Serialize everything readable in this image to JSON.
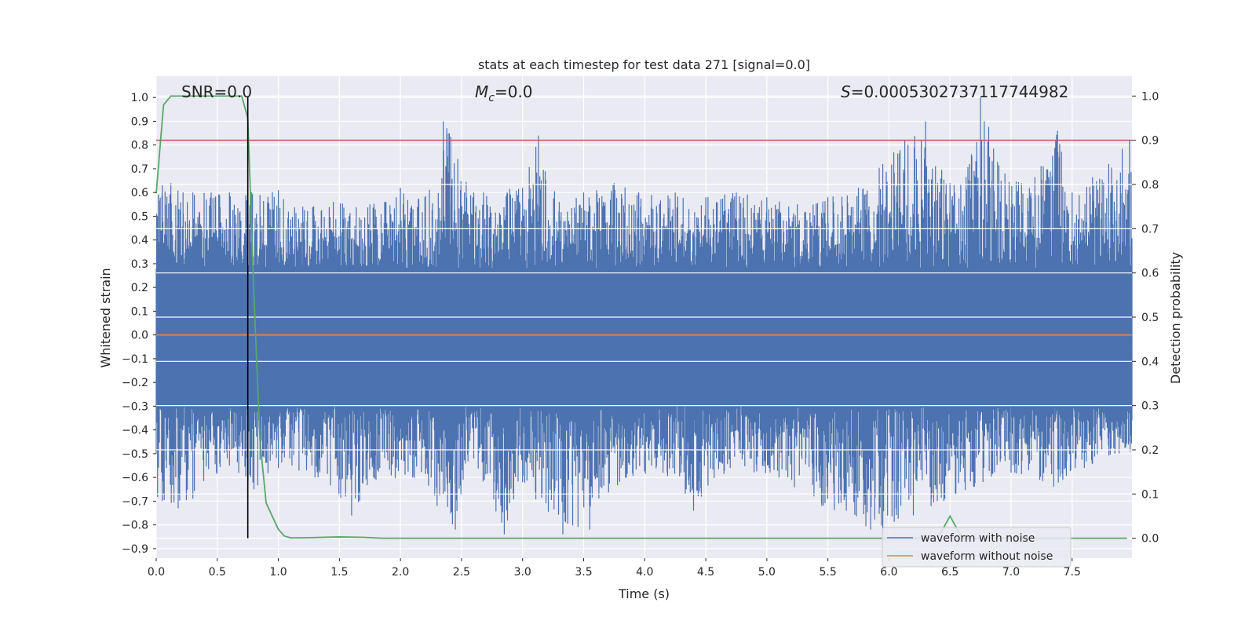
{
  "chart_data": {
    "type": "line",
    "title": "stats at each timestep for test data 271 [signal=0.0]",
    "xlabel": "Time (s)",
    "ylabel_left": "Whitened strain",
    "ylabel_right": "Detection probability",
    "xlim": [
      0.0,
      7.99
    ],
    "ylim_left": [
      -0.94,
      1.09
    ],
    "ylim_right": [
      -0.045,
      1.045
    ],
    "x_ticks": [
      "0.0",
      "0.5",
      "1.0",
      "1.5",
      "2.0",
      "2.5",
      "3.0",
      "3.5",
      "4.0",
      "4.5",
      "5.0",
      "5.5",
      "6.0",
      "6.5",
      "7.0",
      "7.5"
    ],
    "y_left_ticks": [
      "1.0",
      "0.9",
      "0.8",
      "0.7",
      "0.6",
      "0.5",
      "0.4",
      "0.3",
      "0.2",
      "0.1",
      "0.0",
      "−0.1",
      "−0.2",
      "−0.3",
      "−0.4",
      "−0.5",
      "−0.6",
      "−0.7",
      "−0.8",
      "−0.9"
    ],
    "y_right_ticks": [
      "1.0",
      "0.9",
      "0.8",
      "0.7",
      "0.6",
      "0.5",
      "0.4",
      "0.3",
      "0.2",
      "0.1",
      "0.0"
    ],
    "grid": true,
    "legend_position": "lower-right",
    "annotations": {
      "snr": "SNR=0.0",
      "mc_symbol": "M",
      "mc_sub": "c",
      "mc_value": "=0.0",
      "s_symbol": "S",
      "s_value": "=0.0005302737117744982"
    },
    "series": [
      {
        "name": "waveform with noise",
        "axis": "left",
        "color": "#4c72b0",
        "style": "dense noise",
        "upper_envelope_peaks": [
          [
            0.05,
            0.63
          ],
          [
            0.12,
            0.64
          ],
          [
            0.22,
            0.6
          ],
          [
            0.3,
            0.6
          ],
          [
            0.45,
            0.6
          ],
          [
            0.6,
            0.6
          ],
          [
            0.78,
            0.6
          ],
          [
            0.85,
            0.59
          ],
          [
            1.0,
            0.61
          ],
          [
            1.2,
            0.54
          ],
          [
            1.45,
            0.56
          ],
          [
            1.75,
            0.55
          ],
          [
            2.0,
            0.62
          ],
          [
            2.2,
            0.58
          ],
          [
            2.35,
            0.9
          ],
          [
            2.4,
            0.85
          ],
          [
            2.6,
            0.6
          ],
          [
            3.0,
            0.62
          ],
          [
            3.13,
            0.84
          ],
          [
            3.3,
            0.56
          ],
          [
            3.5,
            0.6
          ],
          [
            3.75,
            0.64
          ],
          [
            3.95,
            0.6
          ],
          [
            4.25,
            0.6
          ],
          [
            4.5,
            0.58
          ],
          [
            4.75,
            0.6
          ],
          [
            5.0,
            0.58
          ],
          [
            5.25,
            0.55
          ],
          [
            5.5,
            0.58
          ],
          [
            5.75,
            0.62
          ],
          [
            5.95,
            0.72
          ],
          [
            6.13,
            0.82
          ],
          [
            6.3,
            0.9
          ],
          [
            6.5,
            0.64
          ],
          [
            6.66,
            0.72
          ],
          [
            6.75,
            1.0
          ],
          [
            6.95,
            0.68
          ],
          [
            7.15,
            0.62
          ],
          [
            7.38,
            0.86
          ],
          [
            7.5,
            0.6
          ],
          [
            7.8,
            0.72
          ],
          [
            7.97,
            0.82
          ]
        ],
        "lower_envelope_peaks": [
          [
            0.05,
            -0.7
          ],
          [
            0.18,
            -0.73
          ],
          [
            0.3,
            -0.69
          ],
          [
            0.6,
            -0.55
          ],
          [
            0.8,
            -0.65
          ],
          [
            1.0,
            -0.56
          ],
          [
            1.3,
            -0.6
          ],
          [
            1.6,
            -0.76
          ],
          [
            1.8,
            -0.61
          ],
          [
            2.1,
            -0.6
          ],
          [
            2.3,
            -0.72
          ],
          [
            2.45,
            -0.82
          ],
          [
            2.6,
            -0.52
          ],
          [
            2.85,
            -0.84
          ],
          [
            3.0,
            -0.62
          ],
          [
            3.33,
            -0.84
          ],
          [
            3.55,
            -0.82
          ],
          [
            3.85,
            -0.6
          ],
          [
            4.15,
            -0.58
          ],
          [
            4.4,
            -0.74
          ],
          [
            4.7,
            -0.56
          ],
          [
            5.1,
            -0.6
          ],
          [
            5.45,
            -0.72
          ],
          [
            5.85,
            -0.82
          ],
          [
            5.95,
            -0.84
          ],
          [
            6.2,
            -0.76
          ],
          [
            6.45,
            -0.7
          ],
          [
            6.7,
            -0.64
          ],
          [
            7.0,
            -0.58
          ],
          [
            7.35,
            -0.64
          ],
          [
            7.6,
            -0.56
          ],
          [
            7.85,
            -0.5
          ]
        ],
        "core_band": [
          -0.3,
          0.28
        ]
      },
      {
        "name": "waveform without noise",
        "axis": "left",
        "color": "#dd8452",
        "x": [
          0.0,
          7.99
        ],
        "y": [
          0.0,
          0.0
        ]
      },
      {
        "name": "",
        "axis": "right",
        "color": "#55a868",
        "x": [
          0.0,
          0.06,
          0.12,
          0.3,
          0.5,
          0.7,
          0.75,
          0.8,
          0.85,
          0.9,
          0.95,
          1.0,
          1.05,
          1.1,
          1.2,
          1.5,
          1.7,
          1.85,
          2.0,
          3.0,
          4.0,
          5.0,
          6.0,
          6.4,
          6.5,
          6.6,
          7.0,
          7.5,
          7.95
        ],
        "y": [
          0.78,
          0.98,
          1.0,
          1.0,
          1.0,
          1.0,
          0.95,
          0.55,
          0.22,
          0.08,
          0.05,
          0.02,
          0.005,
          0.001,
          0.001,
          0.003,
          0.002,
          0.0,
          0.0,
          0.0,
          0.0,
          0.0,
          0.0,
          0.0,
          0.05,
          0.0,
          0.0,
          0.0,
          0.0
        ]
      }
    ],
    "threshold_line": {
      "axis": "right",
      "value": 0.9,
      "color": "#c44e52"
    },
    "marker_vline": {
      "x": 0.75,
      "color": "#000000"
    }
  }
}
